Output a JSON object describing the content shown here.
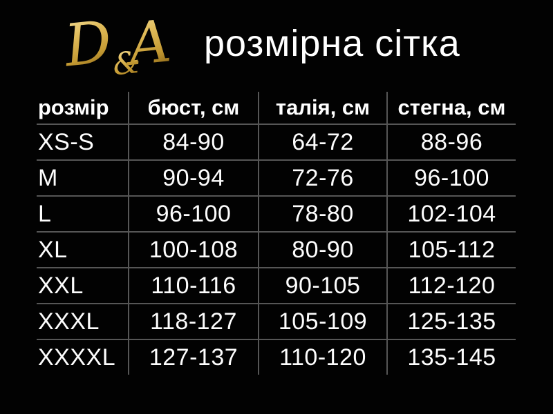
{
  "theme": {
    "background_color": "#000000",
    "text_color": "#ffffff",
    "grid_line_color": "#565656",
    "gold_light": "#f7e7a8",
    "gold_mid": "#d9b452",
    "gold_dark": "#8f6a1a"
  },
  "header": {
    "logo": {
      "letter_d": "D",
      "ampersand": "&",
      "letter_a": "A"
    },
    "title": "розмірна сітка"
  },
  "table": {
    "columns": [
      "розмір",
      "бюст, см",
      "талія, см",
      "стегна, см"
    ],
    "rows": [
      [
        "XS-S",
        "84-90",
        "64-72",
        "88-96"
      ],
      [
        "M",
        "90-94",
        "72-76",
        "96-100"
      ],
      [
        "L",
        "96-100",
        "78-80",
        "102-104"
      ],
      [
        "XL",
        "100-108",
        "80-90",
        "105-112"
      ],
      [
        "XXL",
        "110-116",
        "90-105",
        "112-120"
      ],
      [
        "XXXL",
        "118-127",
        "105-109",
        "125-135"
      ],
      [
        "XXXXL",
        "127-137",
        "110-120",
        "135-145"
      ]
    ]
  },
  "chart_data": {
    "type": "table",
    "title": "розмірна сітка",
    "columns": [
      "розмір",
      "бюст, см",
      "талія, см",
      "стегна, см"
    ],
    "rows": [
      {
        "size": "XS-S",
        "bust_cm": "84-90",
        "waist_cm": "64-72",
        "hips_cm": "88-96"
      },
      {
        "size": "M",
        "bust_cm": "90-94",
        "waist_cm": "72-76",
        "hips_cm": "96-100"
      },
      {
        "size": "L",
        "bust_cm": "96-100",
        "waist_cm": "78-80",
        "hips_cm": "102-104"
      },
      {
        "size": "XL",
        "bust_cm": "100-108",
        "waist_cm": "80-90",
        "hips_cm": "105-112"
      },
      {
        "size": "XXL",
        "bust_cm": "110-116",
        "waist_cm": "90-105",
        "hips_cm": "112-120"
      },
      {
        "size": "XXXL",
        "bust_cm": "118-127",
        "waist_cm": "105-109",
        "hips_cm": "125-135"
      },
      {
        "size": "XXXXL",
        "bust_cm": "127-137",
        "waist_cm": "110-120",
        "hips_cm": "135-145"
      }
    ]
  }
}
